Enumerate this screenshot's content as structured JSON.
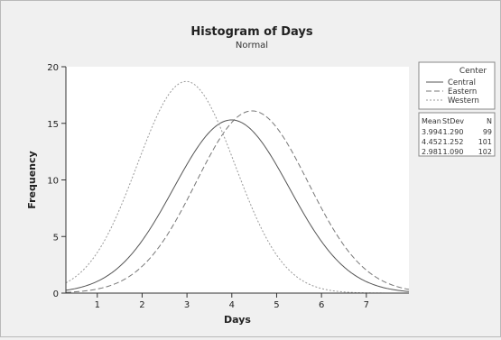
{
  "chart_data": {
    "type": "line",
    "title": "Histogram of Days",
    "subtitle": "Normal",
    "xlabel": "Days",
    "ylabel": "Frequency",
    "xlim": [
      0.3,
      7.95
    ],
    "ylim": [
      0,
      20
    ],
    "xticks": [
      1,
      2,
      3,
      4,
      5,
      6,
      7
    ],
    "yticks": [
      0,
      5,
      10,
      15,
      20
    ],
    "grid": false,
    "legend_position": "right",
    "legend_title": "Center",
    "series": [
      {
        "name": "Central",
        "mean": 3.994,
        "stdev": 1.29,
        "n": 99,
        "peak": 15.3,
        "style": "solid",
        "color": "#555555"
      },
      {
        "name": "Eastern",
        "mean": 4.452,
        "stdev": 1.252,
        "n": 101,
        "peak": 16.1,
        "style": "dashed",
        "color": "#777777"
      },
      {
        "name": "Western",
        "mean": 2.981,
        "stdev": 1.09,
        "n": 102,
        "peak": 18.7,
        "style": "dotted",
        "color": "#9a9a9a"
      }
    ],
    "stats_table": {
      "headers": [
        "Mean",
        "StDev",
        "N"
      ],
      "rows": [
        [
          "3.994",
          "1.290",
          "99"
        ],
        [
          "4.452",
          "1.252",
          "101"
        ],
        [
          "2.981",
          "1.090",
          "102"
        ]
      ]
    }
  }
}
